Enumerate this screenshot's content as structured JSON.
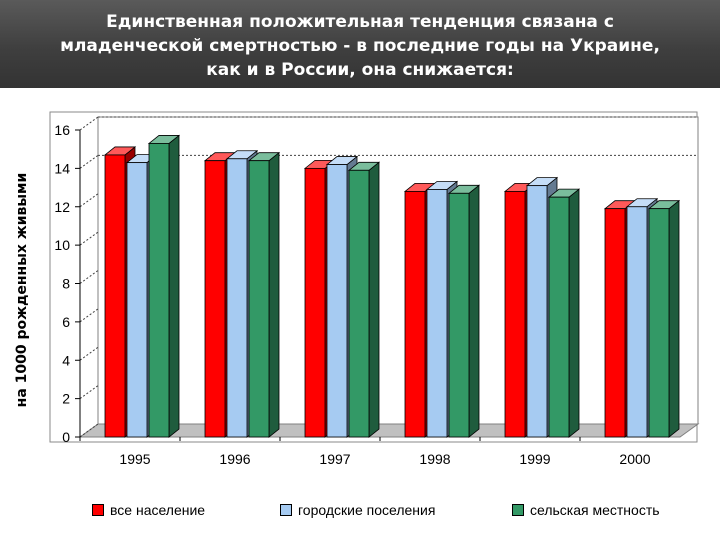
{
  "header": {
    "title_lines": [
      "Единственная положительная тенденция связана с",
      "младенческой смертностью - в последние годы на Украине,",
      "как и в России, она снижается:"
    ]
  },
  "chart_data": {
    "type": "bar",
    "title": "Единственная положительная тенденция связана с младенческой смертностью - в последние годы на Украине, как и в России, она снижается:",
    "xlabel": "",
    "ylabel": "на 1000 рожденных живыми",
    "ylim": [
      0,
      16
    ],
    "yticks": [
      0,
      2,
      4,
      6,
      8,
      10,
      12,
      14,
      16
    ],
    "categories": [
      "1995",
      "1996",
      "1997",
      "1998",
      "1999",
      "2000"
    ],
    "series": [
      {
        "name": "все население",
        "color": "#ff0000",
        "values": [
          14.7,
          14.4,
          14.0,
          12.8,
          12.8,
          11.9
        ]
      },
      {
        "name": "городские поселения",
        "color": "#a6cbf2",
        "values": [
          14.3,
          14.5,
          14.2,
          12.9,
          13.1,
          12.0
        ]
      },
      {
        "name": "сельская местность",
        "color": "#339966",
        "values": [
          15.3,
          14.4,
          13.9,
          12.7,
          12.5,
          11.9
        ]
      }
    ],
    "grid": {
      "major_y": [
        14,
        16
      ],
      "minor": "dotted"
    },
    "legend_position": "bottom"
  }
}
